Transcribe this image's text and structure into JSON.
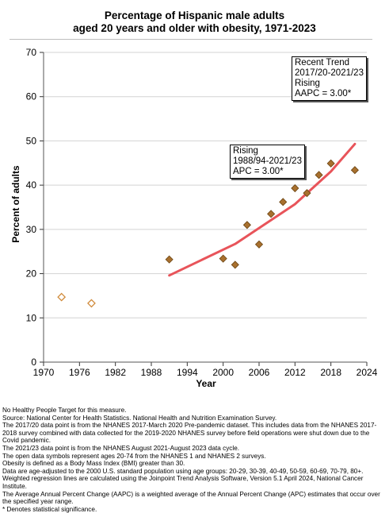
{
  "chart_data": {
    "type": "scatter",
    "title": "Percentage of Hispanic male adults",
    "subtitle": "aged 20 years and older with obesity, 1971-2023",
    "xlabel": "Year",
    "ylabel": "Percent of adults",
    "xlim": [
      1970,
      2024
    ],
    "ylim": [
      0,
      70
    ],
    "xticks": [
      1970,
      1976,
      1982,
      1988,
      1994,
      2000,
      2006,
      2012,
      2018,
      2024
    ],
    "yticks": [
      0,
      10,
      20,
      30,
      40,
      50,
      60,
      70
    ],
    "grid": "horizontal",
    "series": [
      {
        "marker": "hollow-diamond",
        "color": "#d08a3a",
        "points": [
          {
            "x": 1973,
            "y": 14.7
          },
          {
            "x": 1978,
            "y": 13.3
          }
        ]
      },
      {
        "marker": "filled-diamond",
        "color": "#a8702e",
        "points": [
          {
            "x": 1991,
            "y": 23.2
          },
          {
            "x": 2000,
            "y": 23.4
          },
          {
            "x": 2002,
            "y": 22.0
          },
          {
            "x": 2004,
            "y": 31.0
          },
          {
            "x": 2006,
            "y": 26.6
          },
          {
            "x": 2008,
            "y": 33.5
          },
          {
            "x": 2010,
            "y": 36.2
          },
          {
            "x": 2012,
            "y": 39.3
          },
          {
            "x": 2014,
            "y": 38.2
          },
          {
            "x": 2016,
            "y": 42.3
          },
          {
            "x": 2018,
            "y": 44.9
          },
          {
            "x": 2022,
            "y": 43.4
          }
        ]
      },
      {
        "marker": "line",
        "color": "#e8545a",
        "points": [
          {
            "x": 1991,
            "y": 19.6
          },
          {
            "x": 2002,
            "y": 26.7
          },
          {
            "x": 2012,
            "y": 35.7
          },
          {
            "x": 2018,
            "y": 43.1
          },
          {
            "x": 2022,
            "y": 49.3
          }
        ]
      }
    ]
  },
  "annotations": {
    "recent_trend": [
      "Recent Trend",
      "2017/20-2021/23",
      "Rising",
      "AAPC =  3.00*"
    ],
    "overall_trend": [
      "Rising",
      "1988/94-2021/23",
      "APC =  3.00*"
    ]
  },
  "notes": [
    "No Healthy People Target for this measure.",
    "Source: National Center for Health Statistics. National Health and Nutrition Examination Survey.",
    "The 2017/20 data point is from the NHANES 2017-March 2020 Pre-pandemic dataset. This includes data from the NHANES 2017-2018 survey combined with data collected for the 2019-2020 NHANES survey before field operations were shut down due to the Covid pandemic.",
    "The 2021/23 data point is from the NHANES August 2021-August 2023 data cycle.",
    "The open data symbols represent ages 20-74 from the NHANES 1 and NHANES 2 surveys.",
    "Obesity is defined as a Body Mass Index (BMI) greater than 30.",
    "Data are age-adjusted to the 2000 U.S. standard population using age groups: 20-29, 30-39, 40-49, 50-59, 60-69, 70-79, 80+.",
    "Weighted regression lines are calculated using the Joinpoint Trend Analysis Software, Version 5.1 April 2024, National Cancer Institute.",
    "The Average Annual Percent Change (AAPC) is a weighted average of the Annual Percent Change (APC) estimates that occur over the specified year range.",
    "* Denotes statistical significance."
  ]
}
